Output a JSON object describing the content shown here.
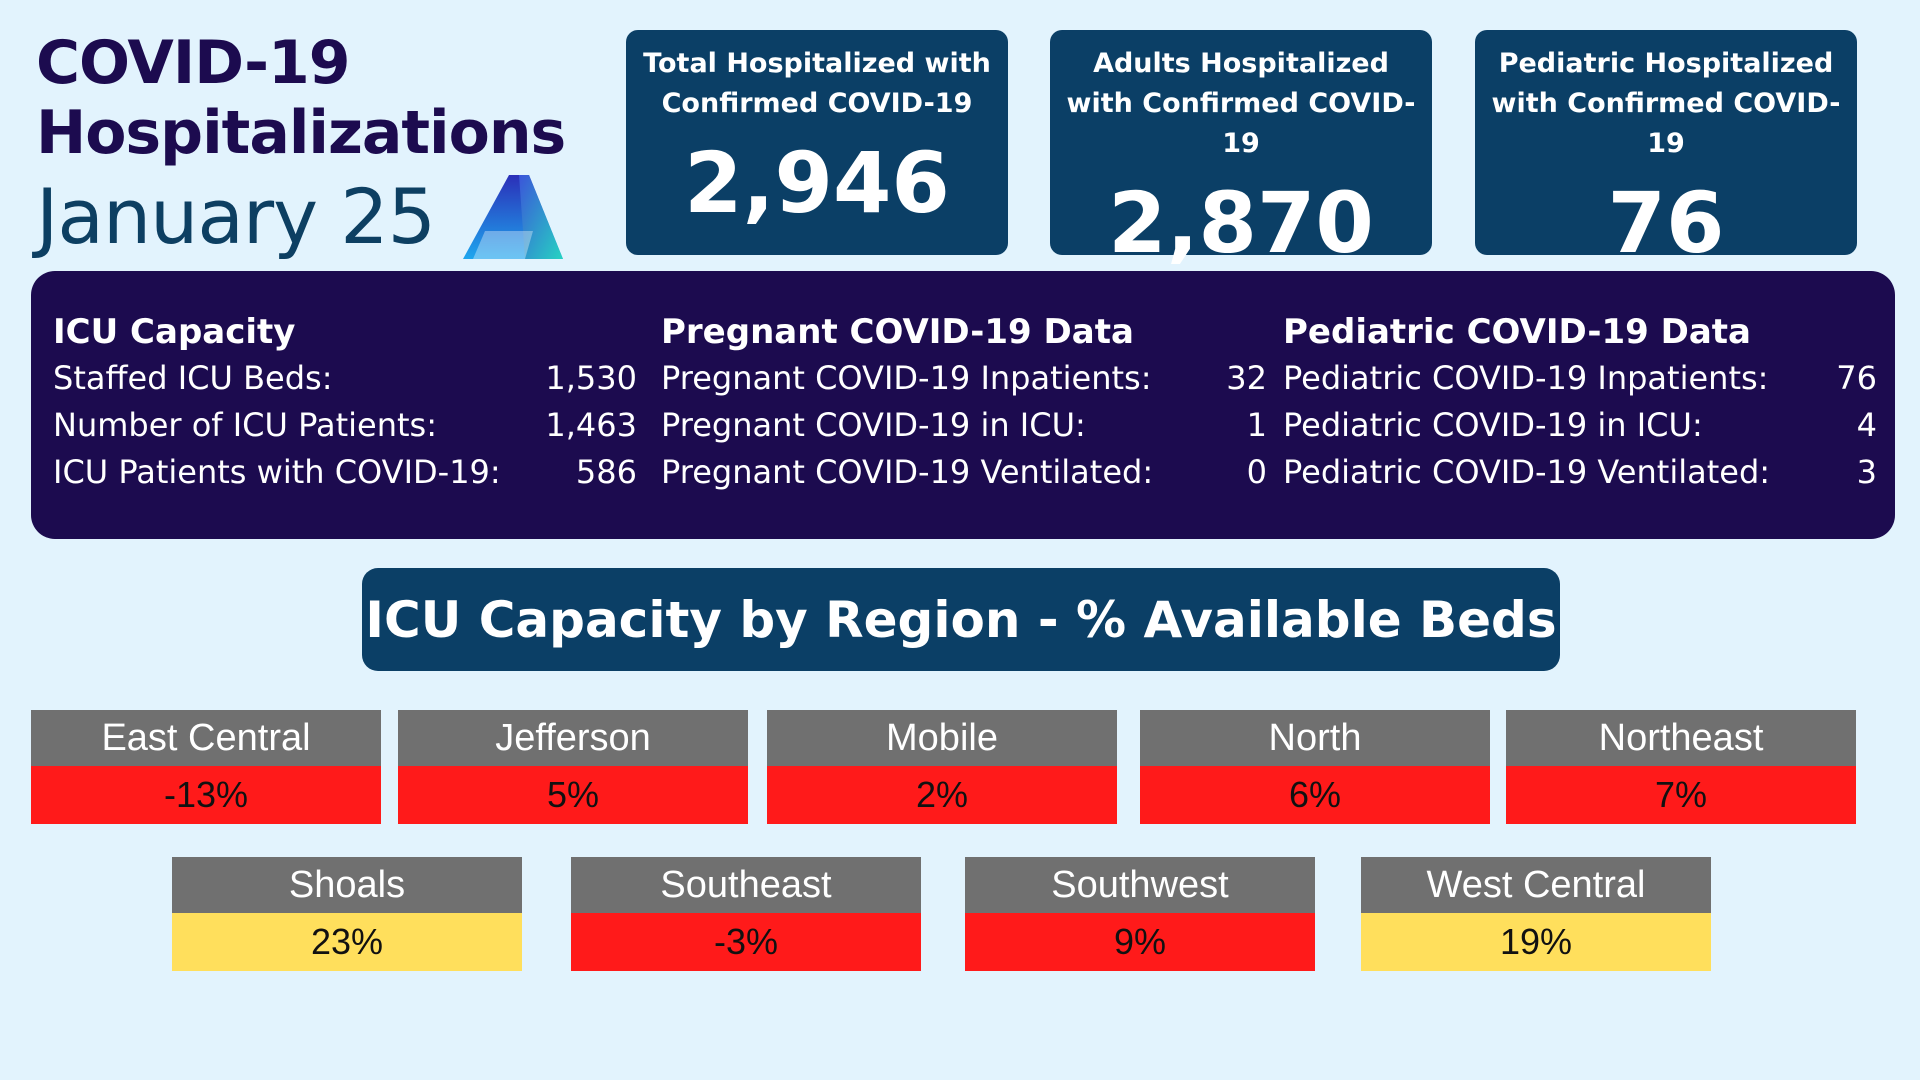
{
  "header": {
    "title_line1": "COVID-19",
    "title_line2": "Hospitalizations",
    "date": "January 25",
    "logo_icon": "triangle-a-logo-icon"
  },
  "stats": [
    {
      "label": "Total Hospitalized with Confirmed COVID-19",
      "value": "2,946"
    },
    {
      "label": "Adults Hospitalized with Confirmed COVID-19",
      "value": "2,870"
    },
    {
      "label": "Pediatric Hospitalized with Confirmed COVID-19",
      "value": "76"
    }
  ],
  "icu": {
    "title": "ICU Capacity",
    "rows": [
      {
        "label": "Staffed ICU Beds:",
        "value": "1,530"
      },
      {
        "label": "Number of ICU Patients:",
        "value": "1,463"
      },
      {
        "label": "ICU Patients with COVID-19:",
        "value": "586"
      }
    ]
  },
  "pregnant": {
    "title": "Pregnant COVID-19 Data",
    "rows": [
      {
        "label": "Pregnant COVID-19 Inpatients:",
        "value": "32"
      },
      {
        "label": "Pregnant COVID-19 in ICU:",
        "value": "1"
      },
      {
        "label": "Pregnant COVID-19 Ventilated:",
        "value": "0"
      }
    ]
  },
  "pediatric": {
    "title": "Pediatric COVID-19 Data",
    "rows": [
      {
        "label": "Pediatric COVID-19 Inpatients:",
        "value": "76"
      },
      {
        "label": "Pediatric COVID-19 in ICU:",
        "value": "4"
      },
      {
        "label": "Pediatric COVID-19 Ventilated:",
        "value": "3"
      }
    ]
  },
  "region_banner": "ICU Capacity by Region - % Available Beds",
  "colors": {
    "low": "#ff1a1a",
    "medium": "#ffdf5c"
  },
  "regions": [
    {
      "name": "East Central",
      "value": "-13%",
      "level": "low"
    },
    {
      "name": "Jefferson",
      "value": "5%",
      "level": "low"
    },
    {
      "name": "Mobile",
      "value": "2%",
      "level": "low"
    },
    {
      "name": "North",
      "value": "6%",
      "level": "low"
    },
    {
      "name": "Northeast",
      "value": "7%",
      "level": "low"
    },
    {
      "name": "Shoals",
      "value": "23%",
      "level": "medium"
    },
    {
      "name": "Southeast",
      "value": "-3%",
      "level": "low"
    },
    {
      "name": "Southwest",
      "value": "9%",
      "level": "low"
    },
    {
      "name": "West Central",
      "value": "19%",
      "level": "medium"
    }
  ]
}
